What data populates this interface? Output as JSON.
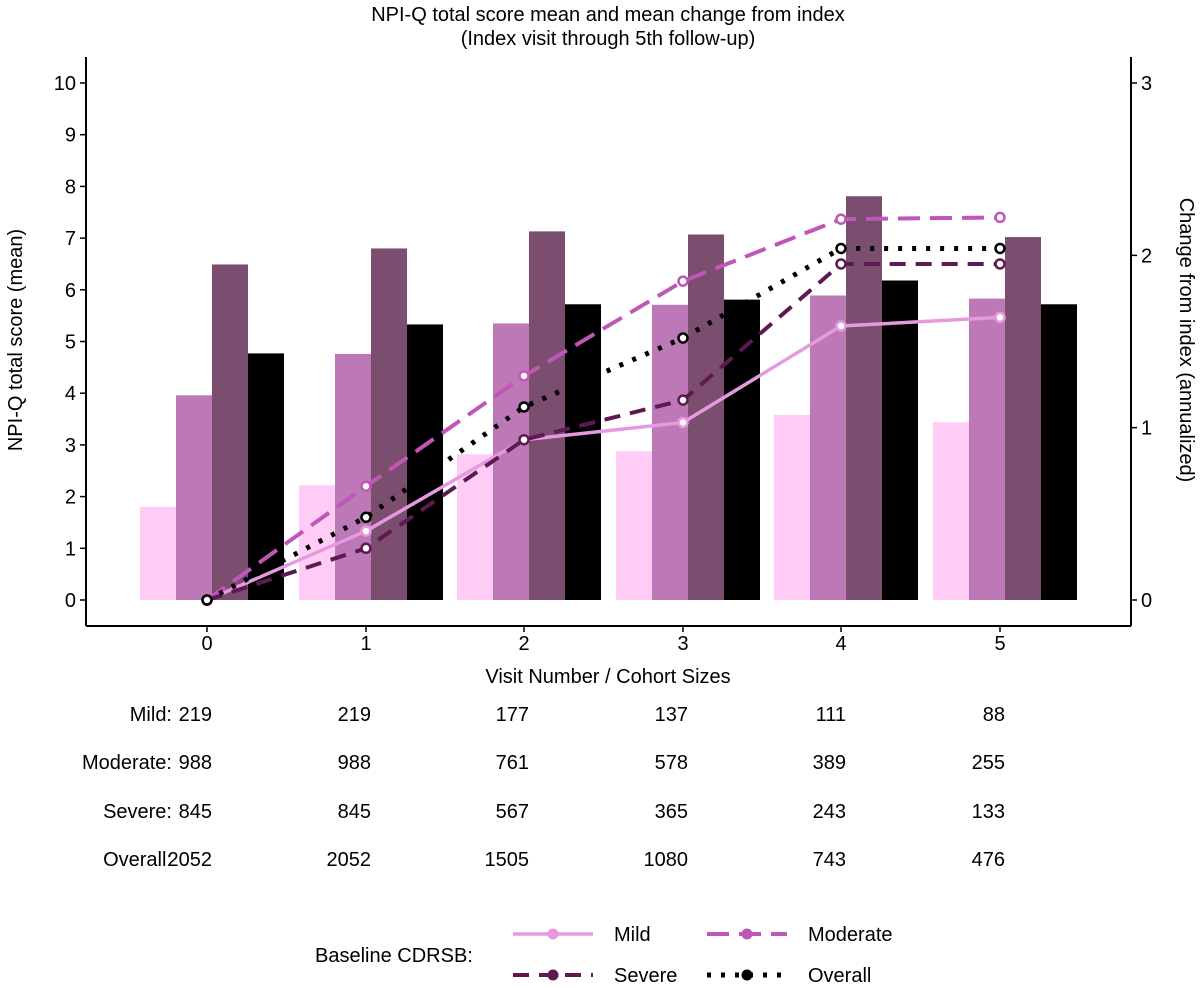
{
  "chart_data": {
    "type": "bar+line",
    "title": "NPI-Q total score mean and mean change from index",
    "subtitle": "(Index visit through 5th follow-up)",
    "xlabel": "Visit Number / Cohort Sizes",
    "ylabel_left": "NPI-Q total score (mean)",
    "ylabel_right": "Change from index (annualized)",
    "ylim_left": [
      0,
      10
    ],
    "ylim_right": [
      0,
      3
    ],
    "grid": false,
    "categories": [
      "0",
      "1",
      "2",
      "3",
      "4",
      "5"
    ],
    "bar_series": [
      {
        "name": "Mild",
        "color": "#ffccf5",
        "values": [
          1.8,
          2.22,
          2.82,
          2.88,
          3.58,
          3.44
        ]
      },
      {
        "name": "Moderate",
        "color": "#bd78b7",
        "values": [
          3.96,
          4.76,
          5.35,
          5.71,
          5.89,
          5.83
        ]
      },
      {
        "name": "Severe",
        "color": "#7b4d6e",
        "values": [
          6.49,
          6.8,
          7.13,
          7.07,
          7.81,
          7.02
        ]
      },
      {
        "name": "Overall",
        "color": "#000000",
        "values": [
          4.77,
          5.33,
          5.72,
          5.81,
          6.18,
          5.72
        ]
      }
    ],
    "line_series": [
      {
        "name": "Mild",
        "color": "#e59ae0",
        "dash": "solid",
        "values": [
          0,
          0.4,
          0.93,
          1.03,
          1.59,
          1.64
        ]
      },
      {
        "name": "Moderate",
        "color": "#c056b8",
        "dash": "longdash",
        "values": [
          0,
          0.66,
          1.3,
          1.85,
          2.21,
          2.22
        ]
      },
      {
        "name": "Severe",
        "color": "#5e1a50",
        "dash": "dash",
        "values": [
          0,
          0.3,
          0.93,
          1.16,
          1.95,
          1.95
        ]
      },
      {
        "name": "Overall",
        "color": "#000000",
        "dash": "dotted",
        "values": [
          0,
          0.48,
          1.12,
          1.52,
          2.04,
          2.04
        ]
      }
    ],
    "y_left_ticks": [
      "0",
      "1",
      "2",
      "3",
      "4",
      "5",
      "6",
      "7",
      "8",
      "9",
      "10"
    ],
    "y_right_ticks": [
      "0",
      "1",
      "2",
      "3"
    ],
    "cohort_table": [
      {
        "label": "Mild:",
        "values": [
          "219",
          "219",
          "177",
          "137",
          "111",
          "88"
        ]
      },
      {
        "label": "Moderate:",
        "values": [
          "988",
          "988",
          "761",
          "578",
          "389",
          "255"
        ]
      },
      {
        "label": "Severe:",
        "values": [
          "845",
          "845",
          "567",
          "365",
          "243",
          "133"
        ]
      },
      {
        "label": "Overall:",
        "values": [
          "2052",
          "2052",
          "1505",
          "1080",
          "743",
          "476"
        ]
      }
    ],
    "legend": {
      "title": "Baseline CDRSB:",
      "position": "bottom",
      "items": [
        "Mild",
        "Moderate",
        "Severe",
        "Overall"
      ]
    }
  }
}
